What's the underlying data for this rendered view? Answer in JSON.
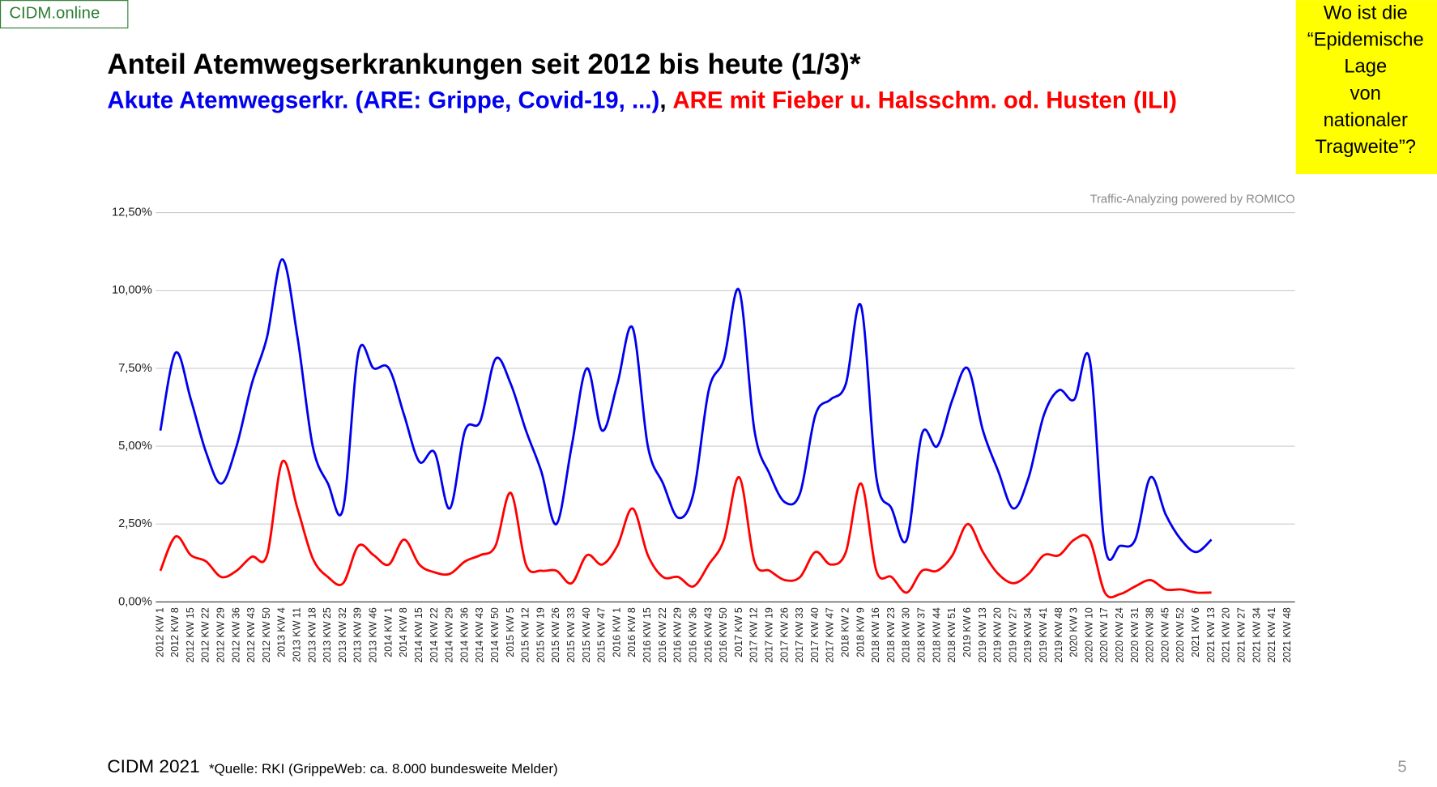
{
  "brand": "CIDM.online",
  "callout": {
    "lines": [
      "Wo ist die",
      "“Epidemische",
      "Lage",
      "von",
      "nationaler",
      "Tragweite”?"
    ]
  },
  "footer": {
    "left": "CIDM 2021",
    "source": "*Quelle: RKI (GrippeWeb: ca. 8.000 bundesweite Melder)",
    "page": "5"
  },
  "chart_data": {
    "type": "line",
    "title": "Anteil Atemwegserkrankungen seit 2012 bis heute (1/3)*",
    "subtitle_separator": ",",
    "annotation": "Traffic-Analyzing powered by ROMICO",
    "categories": [
      "2012 KW 1",
      "2012 KW 8",
      "2012 KW 15",
      "2012 KW 22",
      "2012 KW 29",
      "2012 KW 36",
      "2012 KW 43",
      "2012 KW 50",
      "2013 KW 4",
      "2013 KW 11",
      "2013 KW 18",
      "2013 KW 25",
      "2013 KW 32",
      "2013 KW 39",
      "2013 KW 46",
      "2014 KW 1",
      "2014 KW 8",
      "2014 KW 15",
      "2014 KW 22",
      "2014 KW 29",
      "2014 KW 36",
      "2014 KW 43",
      "2014 KW 50",
      "2015 KW 5",
      "2015 KW 12",
      "2015 KW 19",
      "2015 KW 26",
      "2015 KW 33",
      "2015 KW 40",
      "2015 KW 47",
      "2016 KW 1",
      "2016 KW 8",
      "2016 KW 15",
      "2016 KW 22",
      "2016 KW 29",
      "2016 KW 36",
      "2016 KW 43",
      "2016 KW 50",
      "2017 KW 5",
      "2017 KW 12",
      "2017 KW 19",
      "2017 KW 26",
      "2017 KW 33",
      "2017 KW 40",
      "2017 KW 47",
      "2018 KW 2",
      "2018 KW 9",
      "2018 KW 16",
      "2018 KW 23",
      "2018 KW 30",
      "2018 KW 37",
      "2018 KW 44",
      "2018 KW 51",
      "2019 KW 6",
      "2019 KW 13",
      "2019 KW 20",
      "2019 KW 27",
      "2019 KW 34",
      "2019 KW 41",
      "2019 KW 48",
      "2020 KW 3",
      "2020 KW 10",
      "2020 KW 17",
      "2020 KW 24",
      "2020 KW 31",
      "2020 KW 38",
      "2020 KW 45",
      "2020 KW 52",
      "2021 KW 6",
      "2021 KW 13",
      "2021 KW 20",
      "2021 KW 27",
      "2021 KW 34",
      "2021 KW 41",
      "2021 KW 48"
    ],
    "series": [
      {
        "name": "Akute Atemwegserkr. (ARE: Grippe, Covid-19, ...)",
        "color": "#0000ee",
        "values": [
          5.5,
          8.0,
          6.5,
          4.8,
          3.8,
          5.0,
          7.0,
          8.5,
          11.0,
          8.5,
          5.0,
          3.8,
          3.0,
          8.0,
          7.5,
          7.5,
          6.0,
          4.5,
          4.8,
          3.0,
          5.5,
          5.8,
          7.8,
          7.0,
          5.5,
          4.2,
          2.5,
          5.0,
          7.5,
          5.5,
          7.0,
          8.8,
          5.0,
          3.8,
          2.7,
          3.5,
          6.8,
          7.8,
          10.0,
          5.5,
          4.1,
          3.2,
          3.5,
          6.0,
          6.5,
          7.0,
          9.5,
          4.0,
          3.0,
          2.0,
          5.4,
          5.0,
          6.5,
          7.5,
          5.5,
          4.2,
          3.0,
          4.0,
          6.0,
          6.8,
          6.5,
          7.8,
          1.8,
          1.8,
          2.0,
          4.0,
          2.8,
          2.0,
          1.6,
          2.0,
          null,
          null,
          null,
          null,
          null
        ]
      },
      {
        "name": "ARE mit Fieber u. Halsschm. od. Husten (ILI)",
        "color": "#ff0000",
        "values": [
          1.0,
          2.1,
          1.5,
          1.3,
          0.8,
          1.0,
          1.45,
          1.5,
          4.5,
          3.0,
          1.4,
          0.8,
          0.6,
          1.8,
          1.5,
          1.2,
          2.0,
          1.2,
          0.95,
          0.9,
          1.3,
          1.5,
          1.8,
          3.5,
          1.2,
          1.0,
          1.0,
          0.6,
          1.5,
          1.2,
          1.8,
          3.0,
          1.5,
          0.8,
          0.8,
          0.5,
          1.2,
          2.0,
          4.0,
          1.3,
          1.0,
          0.7,
          0.8,
          1.6,
          1.2,
          1.6,
          3.8,
          1.0,
          0.8,
          0.3,
          1.0,
          1.0,
          1.5,
          2.5,
          1.6,
          0.9,
          0.6,
          0.9,
          1.5,
          1.5,
          2.0,
          2.0,
          0.3,
          0.25,
          0.5,
          0.7,
          0.4,
          0.4,
          0.3,
          0.3,
          null,
          null,
          null,
          null,
          null
        ]
      }
    ],
    "ylim": [
      0,
      12.5
    ],
    "yticks": [
      {
        "value": 0,
        "label": "0,00%"
      },
      {
        "value": 2.5,
        "label": "2,50%"
      },
      {
        "value": 5,
        "label": "5,00%"
      },
      {
        "value": 7.5,
        "label": "7,50%"
      },
      {
        "value": 10,
        "label": "10,00%"
      },
      {
        "value": 12.5,
        "label": "12,50%"
      }
    ],
    "grid": true
  }
}
